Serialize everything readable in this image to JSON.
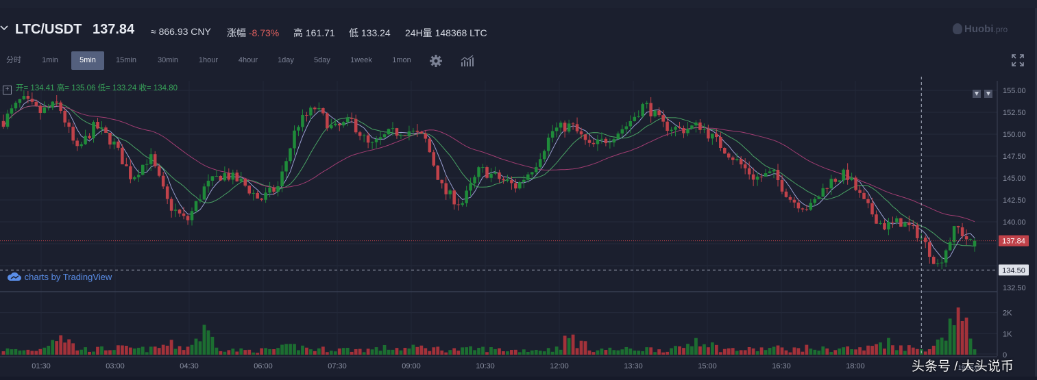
{
  "header": {
    "pair": "LTC/USDT",
    "price": "137.84",
    "cny": "≈ 866.93 CNY",
    "change_label": "涨幅",
    "change_value": "-8.73%",
    "high_label": "高",
    "high_value": "161.71",
    "low_label": "低",
    "low_value": "133.24",
    "vol_label": "24H量",
    "vol_value": "148368 LTC",
    "logo_text": "Huobi",
    "logo_suffix": ".pro"
  },
  "toolbar": {
    "intervals": [
      "分时",
      "1min",
      "5min",
      "15min",
      "30min",
      "1hour",
      "4hour",
      "1day",
      "5day",
      "1week",
      "1mon"
    ],
    "active_interval": "5min"
  },
  "legend": {
    "open_label": "开=",
    "open": "134.41",
    "high_label": "高=",
    "high": "135.06",
    "low_label": "低=",
    "low": "133.24",
    "close_label": "收=",
    "close": "134.80"
  },
  "tradingview_label": "charts by TradingView",
  "watermark": "头条号 / 大头说币",
  "watermark_time": "19:55:00",
  "colors": {
    "up": "#1f8b3a",
    "down": "#c0424a",
    "bg": "#1b1f2e",
    "ma5": "#a8aee4",
    "ma10": "#4fb16a",
    "ma30": "#b0407a"
  },
  "chart_data": {
    "type": "candlestick",
    "price_axis": {
      "ticks": [
        "155.00",
        "152.50",
        "150.00",
        "147.50",
        "145.00",
        "142.50",
        "140.00",
        "137.84",
        "134.50",
        "132.50"
      ],
      "range": [
        132.5,
        155.0
      ]
    },
    "volume_axis": {
      "ticks": [
        "2K",
        "1K",
        "0"
      ],
      "range": [
        0,
        2800
      ]
    },
    "time_axis": [
      "01:30",
      "03:00",
      "04:30",
      "06:00",
      "07:30",
      "09:00",
      "10:30",
      "12:00",
      "13:30",
      "15:00",
      "16:30",
      "18:00"
    ],
    "last_price": 137.84,
    "crosshair_price": 134.5,
    "anchors": [
      151.5,
      154.0,
      152.5,
      153.5,
      148.0,
      151.0,
      149.0,
      145.0,
      147.5,
      142.0,
      140.0,
      144.0,
      145.5,
      144.5,
      142.5,
      144.0,
      151.0,
      153.0,
      150.5,
      151.5,
      148.5,
      150.0,
      150.5,
      149.5,
      143.5,
      142.0,
      146.0,
      145.0,
      144.0,
      146.5,
      150.5,
      151.0,
      148.5,
      149.5,
      151.0,
      153.5,
      151.0,
      150.5,
      151.0,
      149.0,
      147.0,
      145.0,
      145.5,
      142.5,
      141.5,
      144.5,
      145.5,
      142.0,
      139.5,
      140.0,
      138.5,
      135.0,
      139.5,
      137.0
    ],
    "volume_profile": [
      300,
      250,
      300,
      1400,
      350,
      300,
      400,
      350,
      300,
      600,
      400,
      1400,
      300,
      250,
      250,
      350,
      500,
      300,
      350,
      300,
      300,
      400,
      350,
      450,
      300,
      300,
      350,
      300,
      250,
      300,
      300,
      1050,
      350,
      300,
      300,
      350,
      300,
      350,
      1100,
      350,
      300,
      300,
      400,
      300,
      400,
      300,
      400,
      300,
      800,
      500,
      300,
      650,
      2700,
      450
    ]
  }
}
